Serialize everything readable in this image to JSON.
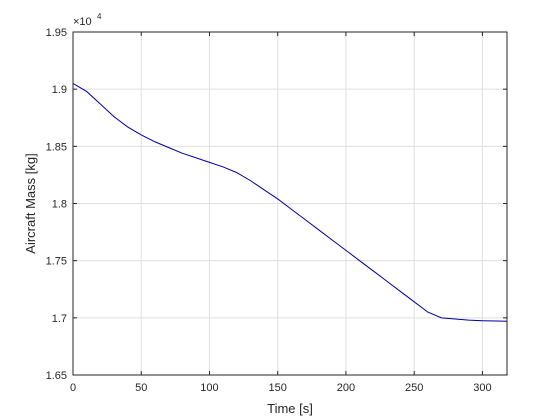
{
  "chart_data": {
    "type": "line",
    "title": "",
    "xlabel": "Time [s]",
    "ylabel": "Aircraft Mass [kg]",
    "xlim": [
      0,
      318
    ],
    "ylim": [
      16500,
      19500
    ],
    "xticks": [
      0,
      50,
      100,
      150,
      200,
      250,
      300
    ],
    "xtick_labels": [
      "0",
      "50",
      "100",
      "150",
      "200",
      "250",
      "300"
    ],
    "yticks": [
      16500,
      17000,
      17500,
      18000,
      18500,
      19000,
      19500
    ],
    "ytick_labels": [
      "1.65",
      "1.7",
      "1.75",
      "1.8",
      "1.85",
      "1.9",
      "1.95"
    ],
    "y_exponent_label": "×10",
    "y_exponent_power": "4",
    "grid": true,
    "series": [
      {
        "color": "#0000a0",
        "x": [
          0,
          10,
          20,
          30,
          40,
          50,
          60,
          70,
          80,
          90,
          100,
          110,
          120,
          130,
          140,
          150,
          160,
          170,
          180,
          190,
          200,
          210,
          220,
          230,
          240,
          250,
          260,
          270,
          280,
          290,
          300,
          310,
          318
        ],
        "y": [
          19050,
          18980,
          18870,
          18760,
          18670,
          18600,
          18540,
          18490,
          18440,
          18400,
          18360,
          18320,
          18270,
          18200,
          18120,
          18040,
          17950,
          17860,
          17770,
          17680,
          17590,
          17500,
          17410,
          17320,
          17230,
          17140,
          17050,
          17000,
          16990,
          16980,
          16975,
          16972,
          16970
        ]
      }
    ]
  }
}
